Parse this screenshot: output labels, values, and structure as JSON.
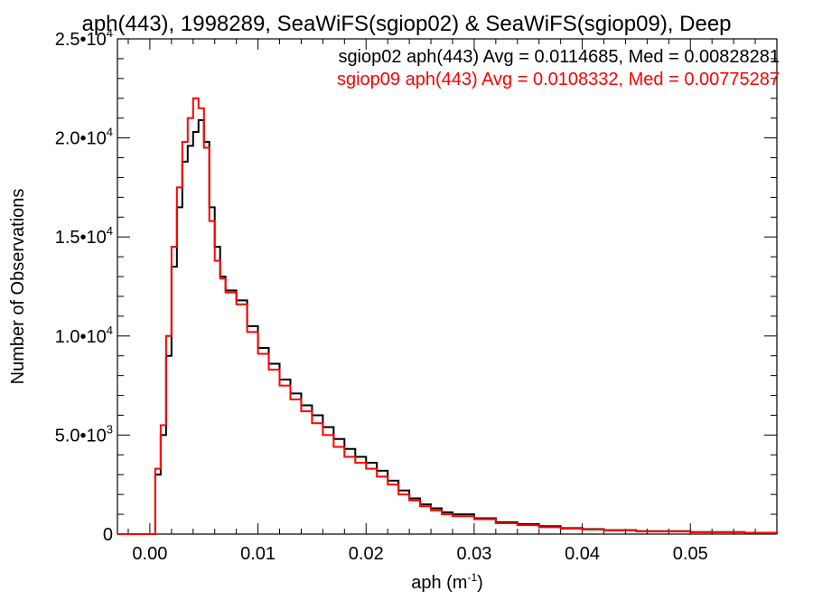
{
  "chart_data": {
    "type": "line",
    "title": "aph(443), 1998289, SeaWiFS(sgiop02) & SeaWiFS(sgiop09), Deep",
    "xlabel": "aph (m",
    "xlabel_exp": "-1",
    "xlabel_close": ")",
    "ylabel": "Number of Observations",
    "xlim": [
      -0.003,
      0.058
    ],
    "ylim": [
      0,
      25000
    ],
    "x_ticks": [
      {
        "value": 0.0,
        "label": "0.00"
      },
      {
        "value": 0.01,
        "label": "0.01"
      },
      {
        "value": 0.02,
        "label": "0.02"
      },
      {
        "value": 0.03,
        "label": "0.03"
      },
      {
        "value": 0.04,
        "label": "0.04"
      },
      {
        "value": 0.05,
        "label": "0.05"
      }
    ],
    "y_ticks": [
      {
        "value": 0,
        "label": "0",
        "exp": ""
      },
      {
        "value": 5000,
        "label": "5.0•10",
        "exp": "3"
      },
      {
        "value": 10000,
        "label": "1.0•10",
        "exp": "4"
      },
      {
        "value": 15000,
        "label": "1.5•10",
        "exp": "4"
      },
      {
        "value": 20000,
        "label": "2.0•10",
        "exp": "4"
      },
      {
        "value": 25000,
        "label": "2.5•10",
        "exp": "4"
      }
    ],
    "grid": false,
    "legend_position": "top-right",
    "series": [
      {
        "name": "sgiop02 aph(443) Avg = 0.0114685, Med = 0.00828281",
        "color": "#000000",
        "x": [
          -0.003,
          0.0,
          0.0005,
          0.001,
          0.0015,
          0.002,
          0.0025,
          0.003,
          0.0035,
          0.004,
          0.0045,
          0.005,
          0.0055,
          0.006,
          0.0065,
          0.007,
          0.008,
          0.009,
          0.01,
          0.011,
          0.012,
          0.013,
          0.014,
          0.015,
          0.016,
          0.017,
          0.018,
          0.019,
          0.02,
          0.021,
          0.022,
          0.023,
          0.024,
          0.025,
          0.026,
          0.027,
          0.028,
          0.03,
          0.032,
          0.034,
          0.036,
          0.038,
          0.04,
          0.042,
          0.045,
          0.05,
          0.055,
          0.058
        ],
        "values": [
          0,
          0,
          3000,
          5000,
          9000,
          13500,
          16500,
          18800,
          19600,
          20300,
          20900,
          19800,
          16500,
          14500,
          13000,
          12300,
          11800,
          10500,
          9400,
          8600,
          7800,
          7100,
          6500,
          6000,
          5400,
          4800,
          4300,
          3900,
          3600,
          3200,
          2700,
          2200,
          1800,
          1500,
          1300,
          1100,
          1000,
          800,
          600,
          500,
          400,
          300,
          250,
          200,
          150,
          100,
          60,
          40
        ]
      },
      {
        "name": "sgiop09 aph(443) Avg = 0.0108332, Med = 0.00775287",
        "color": "#ff0000",
        "x": [
          -0.003,
          0.0,
          0.0005,
          0.001,
          0.0015,
          0.002,
          0.0025,
          0.003,
          0.0035,
          0.004,
          0.0045,
          0.005,
          0.0055,
          0.006,
          0.0065,
          0.007,
          0.008,
          0.009,
          0.01,
          0.011,
          0.012,
          0.013,
          0.014,
          0.015,
          0.016,
          0.017,
          0.018,
          0.019,
          0.02,
          0.021,
          0.022,
          0.023,
          0.024,
          0.025,
          0.026,
          0.027,
          0.028,
          0.03,
          0.032,
          0.034,
          0.036,
          0.038,
          0.04,
          0.042,
          0.045,
          0.05,
          0.055,
          0.058
        ],
        "values": [
          0,
          0,
          3300,
          5500,
          10000,
          14500,
          17500,
          19800,
          21000,
          22000,
          21500,
          19500,
          15800,
          13800,
          12900,
          12200,
          11600,
          10200,
          9100,
          8300,
          7500,
          6800,
          6200,
          5600,
          5000,
          4400,
          3900,
          3600,
          3300,
          2900,
          2500,
          2000,
          1700,
          1400,
          1200,
          1000,
          900,
          750,
          550,
          450,
          350,
          280,
          230,
          180,
          130,
          90,
          55,
          35
        ]
      }
    ]
  }
}
